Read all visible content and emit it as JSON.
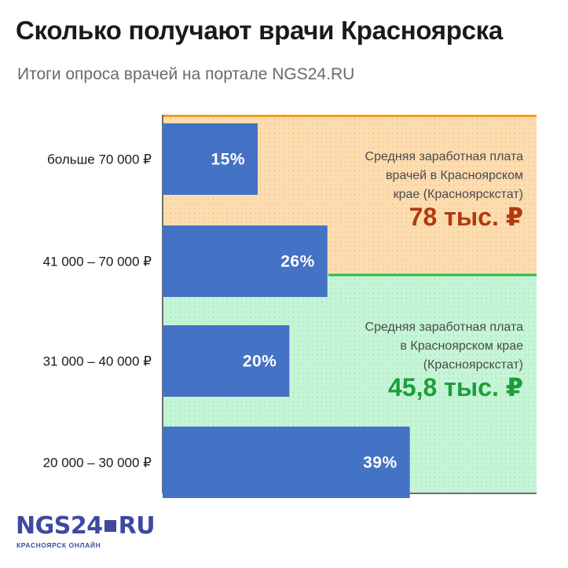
{
  "title": "Сколько получают врачи Красноярска",
  "subtitle": "Итоги опроса врачей на портале NGS24.RU",
  "colors": {
    "bar": "#4472c4",
    "zone_top": "#fddcb0",
    "zone_bottom": "#c5f5d6",
    "line_top": "#f59d20",
    "line_bottom": "#2db84a",
    "value_top": "#b03a10",
    "value_bottom": "#1e9e3a"
  },
  "chart_data": {
    "type": "bar",
    "orientation": "horizontal",
    "categories": [
      "больше 70 000 ₽",
      "41 000 – 70 000 ₽",
      "31 000 – 40 000 ₽",
      "20 000 – 30 000 ₽"
    ],
    "values": [
      15,
      26,
      20,
      39
    ],
    "value_labels": [
      "15%",
      "26%",
      "20%",
      "39%"
    ],
    "xlim": [
      0,
      59
    ],
    "grid": false,
    "annotations": [
      {
        "lines": [
          "Средняя заработная плата",
          "врачей в Красноярском",
          "крае (Красноярскстат)"
        ],
        "value": "78 тыс. ₽",
        "amount": 78000
      },
      {
        "lines": [
          "Средняя заработная плата",
          "в Красноярском крае",
          "(Красноярскстат)"
        ],
        "value": "45,8 тыс. ₽",
        "amount": 45800
      }
    ]
  },
  "logo": {
    "main": "NGS24",
    "suffix": "RU",
    "tagline": "КРАСНОЯРСК ОНЛАЙН"
  }
}
